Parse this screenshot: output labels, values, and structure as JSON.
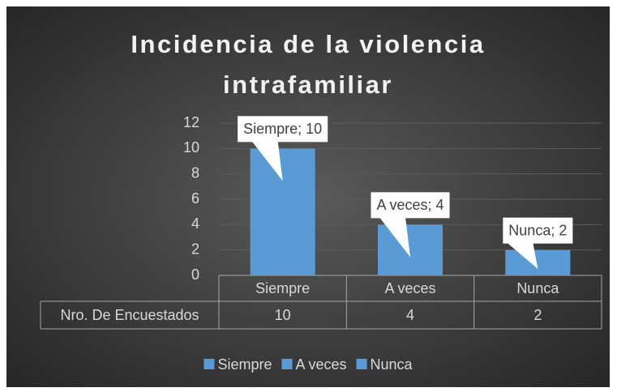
{
  "chart_data": {
    "type": "bar",
    "title": "Incidencia de la violencia intrafamiliar",
    "categories": [
      "Siempre",
      "A veces",
      "Nunca"
    ],
    "series": [
      {
        "name": "Nro. De Encuestados",
        "color": "#5b9bd5",
        "values": [
          10,
          4,
          2
        ],
        "value_labels": [
          "Siempre; 10",
          "A veces; 4",
          "Nunca; 2"
        ]
      }
    ],
    "ylim": [
      0,
      12
    ],
    "yticks": [
      0,
      2,
      4,
      6,
      8,
      10,
      12
    ],
    "grid": true
  }
}
